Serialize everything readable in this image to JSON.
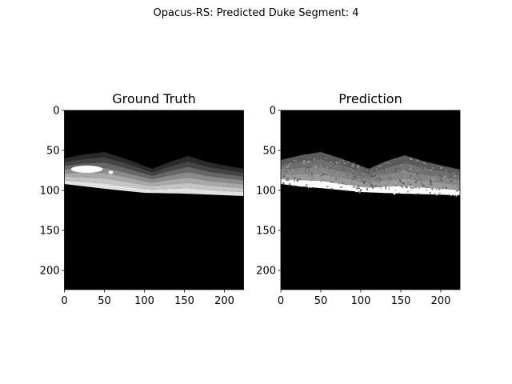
{
  "figure": {
    "suptitle": "Opacus-RS: Predicted Duke Segment: 4"
  },
  "chart_data": [
    {
      "type": "heatmap",
      "title": "Ground Truth",
      "colormap": "gray",
      "image_size": [
        224,
        224
      ],
      "xlim": [
        0,
        224
      ],
      "ylim": [
        224,
        0
      ],
      "xticks": [
        0,
        50,
        100,
        150,
        200
      ],
      "yticks": [
        0,
        50,
        100,
        150,
        200
      ],
      "layer_boundaries": {
        "top_surface": [
          [
            0,
            60
          ],
          [
            25,
            55
          ],
          [
            50,
            52
          ],
          [
            75,
            60
          ],
          [
            110,
            73
          ],
          [
            130,
            65
          ],
          [
            155,
            57
          ],
          [
            180,
            65
          ],
          [
            224,
            73
          ]
        ],
        "bottom_surface": [
          [
            0,
            92
          ],
          [
            25,
            95
          ],
          [
            60,
            99
          ],
          [
            100,
            103
          ],
          [
            150,
            104
          ],
          [
            224,
            107
          ]
        ]
      },
      "layer_gray_values": [
        "#2a2a2a",
        "#444444",
        "#666666",
        "#8a8a8a",
        "#a8a8a8",
        "#c4c4c4",
        "#e2e2e2"
      ],
      "fluid_region": {
        "x_range": [
          8,
          48
        ],
        "y_range": [
          69,
          78
        ],
        "value": "#ffffff"
      }
    },
    {
      "type": "heatmap",
      "title": "Prediction",
      "colormap": "gray",
      "image_size": [
        224,
        224
      ],
      "xlim": [
        0,
        224
      ],
      "ylim": [
        224,
        0
      ],
      "xticks": [
        0,
        50,
        100,
        150,
        200
      ],
      "yticks": [
        0,
        50,
        100,
        150,
        200
      ],
      "layer_boundaries": {
        "top_surface": [
          [
            0,
            62
          ],
          [
            25,
            56
          ],
          [
            50,
            52
          ],
          [
            75,
            60
          ],
          [
            110,
            73
          ],
          [
            130,
            64
          ],
          [
            155,
            56
          ],
          [
            180,
            64
          ],
          [
            224,
            74
          ]
        ],
        "bottom_surface": [
          [
            0,
            92
          ],
          [
            25,
            95
          ],
          [
            60,
            98
          ],
          [
            100,
            102
          ],
          [
            150,
            104
          ],
          [
            224,
            106
          ]
        ]
      },
      "layer_gray_values": [
        "#5a5a5a",
        "#6f6f6f",
        "#858585",
        "#9a9a9a",
        "#ffffff"
      ],
      "noise": "speckled misclassification across layers"
    }
  ]
}
